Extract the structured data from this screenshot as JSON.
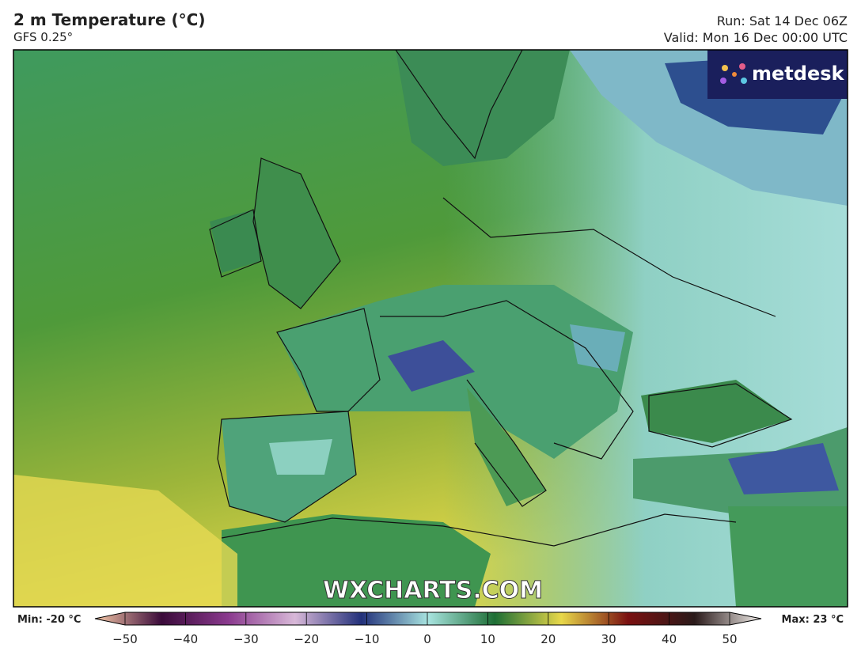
{
  "header": {
    "title": "2 m Temperature (°C)",
    "model": "GFS 0.25°",
    "run": "Run: Sat 14 Dec 06Z",
    "valid": "Valid: Mon 16 Dec 00:00 UTC"
  },
  "logo": "metdesk",
  "watermark": "WXCHARTS.COM",
  "colorbar": {
    "min_label": "Min: -20 °C",
    "max_label": "Max: 23 °C",
    "range": [
      -50,
      50
    ],
    "ticks": [
      {
        "value": -50,
        "label": "−50"
      },
      {
        "value": -40,
        "label": "−40"
      },
      {
        "value": -30,
        "label": "−30"
      },
      {
        "value": -20,
        "label": "−20"
      },
      {
        "value": -10,
        "label": "−10"
      },
      0,
      10,
      20,
      30,
      40,
      50
    ]
  }
}
